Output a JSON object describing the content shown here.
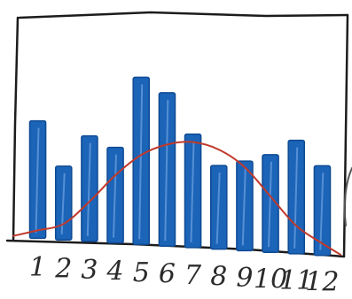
{
  "chart_data": {
    "type": "bar",
    "categories": [
      "1",
      "2",
      "3",
      "4",
      "5",
      "6",
      "7",
      "8",
      "9",
      "10",
      "11",
      "12"
    ],
    "values": [
      59,
      37,
      53,
      48,
      84,
      77,
      57,
      42,
      45,
      49,
      57,
      45
    ],
    "overlay": {
      "type": "line",
      "values": [
        4,
        8,
        20,
        34,
        45,
        51,
        53,
        50,
        42,
        28,
        14,
        6
      ]
    },
    "title": "",
    "xlabel": "",
    "ylabel": "",
    "ylim": [
      0,
      100
    ],
    "grid": false,
    "legend": "none",
    "colors": {
      "bar": "#1b64b8",
      "bar_dark": "#0f4a93",
      "line": "#c0392b",
      "frame": "#1c1c1c"
    }
  }
}
